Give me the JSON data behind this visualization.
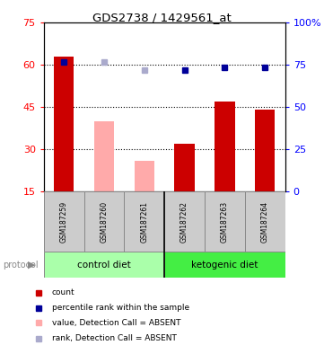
{
  "title": "GDS2738 / 1429561_at",
  "samples": [
    "GSM187259",
    "GSM187260",
    "GSM187261",
    "GSM187262",
    "GSM187263",
    "GSM187264"
  ],
  "bar_values": [
    63,
    null,
    null,
    32,
    47,
    44
  ],
  "bar_absent_values": [
    null,
    40,
    26,
    null,
    null,
    null
  ],
  "bar_colors_present": "#cc0000",
  "bar_colors_absent": "#ffaaaa",
  "dot_present_values": [
    61,
    null,
    null,
    58,
    59,
    59
  ],
  "dot_absent_values": [
    null,
    61,
    58,
    null,
    null,
    null
  ],
  "dot_present_color": "#000099",
  "dot_absent_color": "#aaaacc",
  "ylim_left": [
    15,
    75
  ],
  "ylim_right": [
    0,
    100
  ],
  "yticks_left": [
    15,
    30,
    45,
    60,
    75
  ],
  "yticks_right": [
    0,
    25,
    50,
    75,
    100
  ],
  "ytick_labels_right": [
    "0",
    "25",
    "50",
    "75",
    "100%"
  ],
  "dotted_lines": [
    30,
    45,
    60
  ],
  "group_colors": [
    "#aaffaa",
    "#44ee44"
  ],
  "legend_items": [
    {
      "color": "#cc0000",
      "label": "count"
    },
    {
      "color": "#000099",
      "label": "percentile rank within the sample"
    },
    {
      "color": "#ffaaaa",
      "label": "value, Detection Call = ABSENT"
    },
    {
      "color": "#aaaacc",
      "label": "rank, Detection Call = ABSENT"
    }
  ],
  "bar_width": 0.5,
  "figsize": [
    3.61,
    3.84
  ],
  "dpi": 100
}
